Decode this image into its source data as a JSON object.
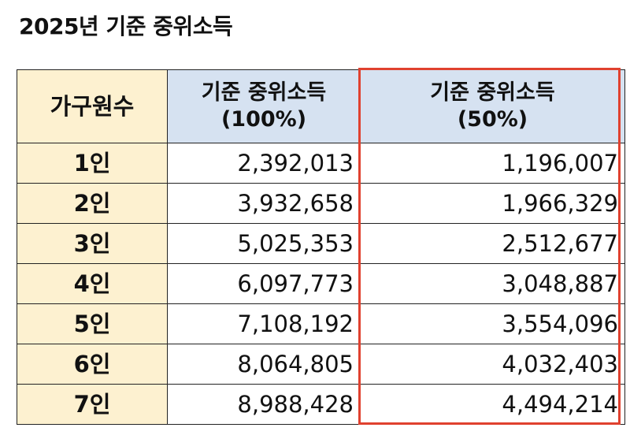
{
  "title": "2025년 기준 중위소득",
  "table": {
    "headers": {
      "household": "가구원수",
      "median_100_line1": "기준 중위소득",
      "median_100_line2": "(100%)",
      "median_50_line1": "기준 중위소득",
      "median_50_line2": "(50%)"
    },
    "rows": [
      {
        "household": "1인",
        "median_100": "2,392,013",
        "median_50": "1,196,007"
      },
      {
        "household": "2인",
        "median_100": "3,932,658",
        "median_50": "1,966,329"
      },
      {
        "household": "3인",
        "median_100": "5,025,353",
        "median_50": "2,512,677"
      },
      {
        "household": "4인",
        "median_100": "6,097,773",
        "median_50": "3,048,887"
      },
      {
        "household": "5인",
        "median_100": "7,108,192",
        "median_50": "3,554,096"
      },
      {
        "household": "6인",
        "median_100": "8,064,805",
        "median_50": "4,032,403"
      },
      {
        "household": "7인",
        "median_100": "8,988,428",
        "median_50": "4,494,214"
      }
    ]
  },
  "colors": {
    "header_blue": "#d6e2f1",
    "label_yellow": "#fdf1d0",
    "highlight_red": "#e0412f"
  }
}
